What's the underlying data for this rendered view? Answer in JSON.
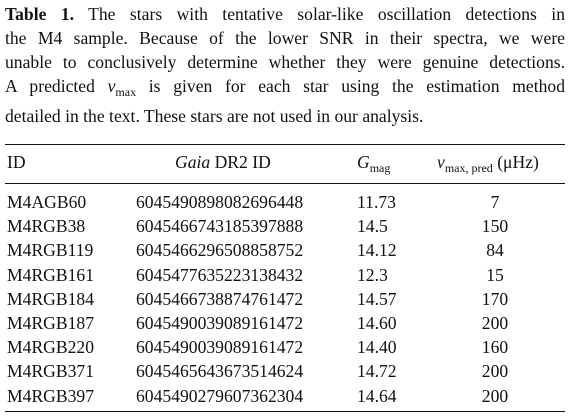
{
  "caption": {
    "label": "Table 1.",
    "line1_rest": " The stars with tentative solar-like oscillation detections in",
    "line2": "the M4 sample. Because of the lower SNR in their spectra, we were",
    "line3": "unable to conclusively determine whether they were genuine detections.",
    "line4_a": "A predicted ",
    "line4_symbol": "ν",
    "line4_sub": "max",
    "line4_b": " is given for each star using the estimation method",
    "line5": "detailed in the text. These stars are not used in our analysis."
  },
  "table": {
    "headers": {
      "id": "ID",
      "gaia_italic": "Gaia",
      "gaia_rest": " DR2 ID",
      "gmag_symbol": "G",
      "gmag_sub": "mag",
      "numax_symbol": "ν",
      "numax_sub": "max, pred",
      "numax_unit": " (μHz)"
    },
    "rows": [
      {
        "id": "M4AGB60",
        "gaia": "6045490898082696448",
        "gmag": "11.73",
        "numax": "7"
      },
      {
        "id": "M4RGB38",
        "gaia": "6045466743185397888",
        "gmag": "14.5",
        "numax": "150"
      },
      {
        "id": "M4RGB119",
        "gaia": "6045466296508858752",
        "gmag": "14.12",
        "numax": "84"
      },
      {
        "id": "M4RGB161",
        "gaia": "6045477635223138432",
        "gmag": "12.3",
        "numax": "15"
      },
      {
        "id": "M4RGB184",
        "gaia": "6045466738874761472",
        "gmag": "14.57",
        "numax": "170"
      },
      {
        "id": "M4RGB187",
        "gaia": "6045490039089161472",
        "gmag": "14.60",
        "numax": "200"
      },
      {
        "id": "M4RGB220",
        "gaia": "6045490039089161472",
        "gmag": "14.40",
        "numax": "160"
      },
      {
        "id": "M4RGB371",
        "gaia": "6045465643673514624",
        "gmag": "14.72",
        "numax": "200"
      },
      {
        "id": "M4RGB397",
        "gaia": "6045490279607362304",
        "gmag": "14.64",
        "numax": "200"
      }
    ]
  }
}
